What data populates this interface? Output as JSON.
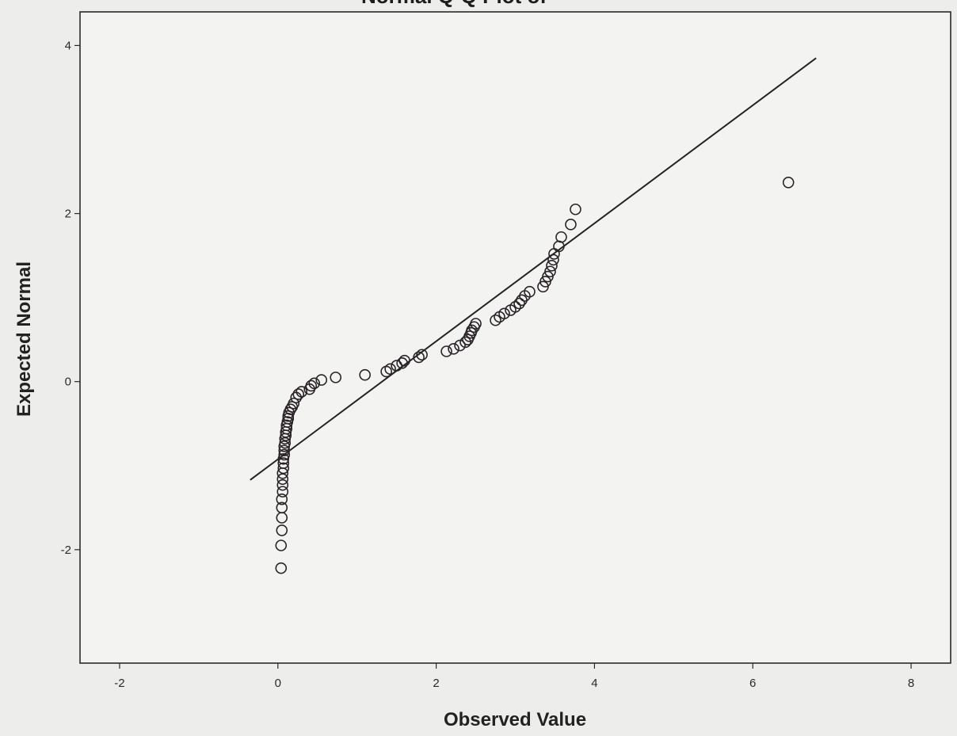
{
  "chart_data": {
    "type": "scatter",
    "title": "Normal Q-Q Plot of",
    "xlabel": "Observed Value",
    "ylabel": "Expected Normal",
    "xlim": [
      -2.5,
      8.5
    ],
    "ylim": [
      -3.35,
      4.4
    ],
    "x_ticks": [
      -2,
      0,
      2,
      4,
      6,
      8
    ],
    "y_ticks": [
      -2,
      0,
      2,
      4
    ],
    "x_tick_labels": [
      "-2",
      "0",
      "2",
      "4",
      "6",
      "8"
    ],
    "y_tick_labels": [
      "-2",
      "0",
      "2",
      "4"
    ],
    "grid": false,
    "legend": "none",
    "reference_line": {
      "x": [
        -0.35,
        6.8
      ],
      "y": [
        -1.17,
        3.85
      ]
    },
    "series": [
      {
        "points": [
          [
            0.04,
            -2.22
          ],
          [
            0.04,
            -1.95
          ],
          [
            0.05,
            -1.77
          ],
          [
            0.05,
            -1.62
          ],
          [
            0.05,
            -1.5
          ],
          [
            0.05,
            -1.4
          ],
          [
            0.06,
            -1.31
          ],
          [
            0.06,
            -1.23
          ],
          [
            0.06,
            -1.16
          ],
          [
            0.06,
            -1.09
          ],
          [
            0.07,
            -1.03
          ],
          [
            0.07,
            -0.97
          ],
          [
            0.07,
            -0.92
          ],
          [
            0.08,
            -0.87
          ],
          [
            0.08,
            -0.82
          ],
          [
            0.08,
            -0.77
          ],
          [
            0.09,
            -0.73
          ],
          [
            0.09,
            -0.68
          ],
          [
            0.1,
            -0.64
          ],
          [
            0.1,
            -0.6
          ],
          [
            0.11,
            -0.56
          ],
          [
            0.11,
            -0.52
          ],
          [
            0.12,
            -0.48
          ],
          [
            0.13,
            -0.44
          ],
          [
            0.13,
            -0.41
          ],
          [
            0.14,
            -0.37
          ],
          [
            0.16,
            -0.33
          ],
          [
            0.18,
            -0.3
          ],
          [
            0.2,
            -0.26
          ],
          [
            0.23,
            -0.19
          ],
          [
            0.26,
            -0.15
          ],
          [
            0.3,
            -0.12
          ],
          [
            0.4,
            -0.09
          ],
          [
            0.42,
            -0.05
          ],
          [
            0.46,
            -0.02
          ],
          [
            0.55,
            0.02
          ],
          [
            0.73,
            0.05
          ],
          [
            1.1,
            0.08
          ],
          [
            1.37,
            0.12
          ],
          [
            1.42,
            0.15
          ],
          [
            1.5,
            0.19
          ],
          [
            1.57,
            0.22
          ],
          [
            1.6,
            0.25
          ],
          [
            1.78,
            0.29
          ],
          [
            1.82,
            0.32
          ],
          [
            2.13,
            0.36
          ],
          [
            2.22,
            0.39
          ],
          [
            2.3,
            0.43
          ],
          [
            2.37,
            0.47
          ],
          [
            2.4,
            0.5
          ],
          [
            2.42,
            0.54
          ],
          [
            2.44,
            0.58
          ],
          [
            2.45,
            0.61
          ],
          [
            2.48,
            0.65
          ],
          [
            2.5,
            0.69
          ],
          [
            2.75,
            0.73
          ],
          [
            2.8,
            0.77
          ],
          [
            2.86,
            0.81
          ],
          [
            2.94,
            0.85
          ],
          [
            3.0,
            0.89
          ],
          [
            3.05,
            0.93
          ],
          [
            3.08,
            0.97
          ],
          [
            3.12,
            1.02
          ],
          [
            3.18,
            1.07
          ],
          [
            3.35,
            1.13
          ],
          [
            3.38,
            1.19
          ],
          [
            3.41,
            1.25
          ],
          [
            3.44,
            1.31
          ],
          [
            3.46,
            1.38
          ],
          [
            3.48,
            1.45
          ],
          [
            3.49,
            1.52
          ],
          [
            3.55,
            1.61
          ],
          [
            3.58,
            1.72
          ],
          [
            3.7,
            1.87
          ],
          [
            3.76,
            2.05
          ],
          [
            6.45,
            2.37
          ]
        ]
      }
    ]
  }
}
